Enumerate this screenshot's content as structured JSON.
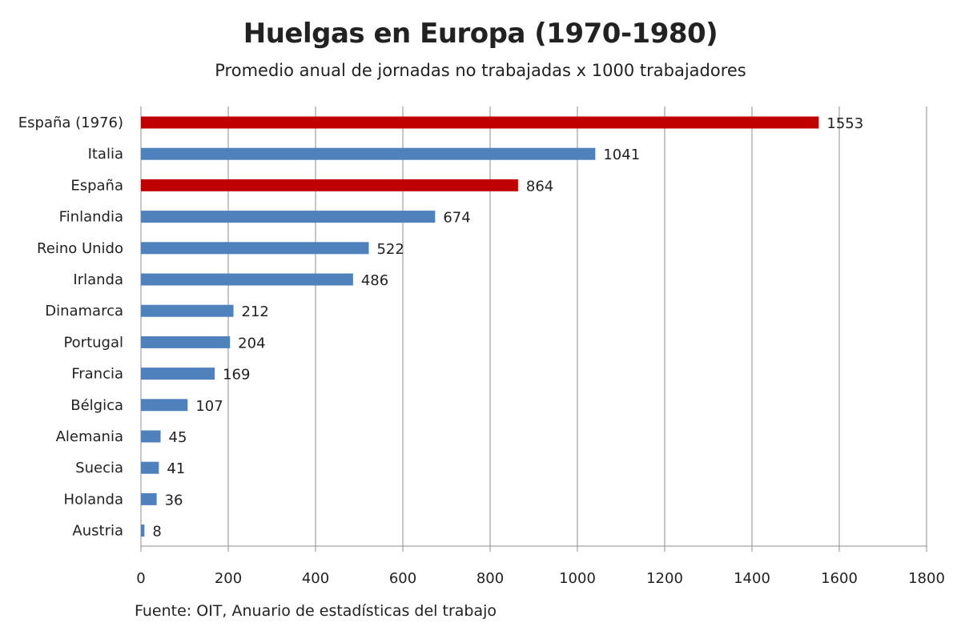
{
  "chart_data": {
    "type": "bar",
    "orientation": "horizontal",
    "title": "Huelgas en Europa (1970-1980)",
    "subtitle": "Promedio anual de jornadas no trabajadas x 1000 trabajadores",
    "source": "Fuente: OIT, Anuario de estadísticas del trabajo",
    "categories": [
      "España (1976)",
      "Italia",
      "España",
      "Finlandia",
      "Reino Unido",
      "Irlanda",
      "Dinamarca",
      "Portugal",
      "Francia",
      "Bélgica",
      "Alemania",
      "Suecia",
      "Holanda",
      "Austria"
    ],
    "values": [
      1553,
      1041,
      864,
      674,
      522,
      486,
      212,
      204,
      169,
      107,
      45,
      41,
      36,
      8
    ],
    "highlight": [
      "España (1976)",
      "España"
    ],
    "colors": {
      "default": "#4F81BD",
      "highlight": "#C00000",
      "grid": "#8C8C8C"
    },
    "xlim": [
      0,
      1800
    ],
    "xticks": [
      0,
      200,
      400,
      600,
      800,
      1000,
      1200,
      1400,
      1600,
      1800
    ],
    "grid": "vertical",
    "data_labels": true,
    "legend": "none"
  }
}
